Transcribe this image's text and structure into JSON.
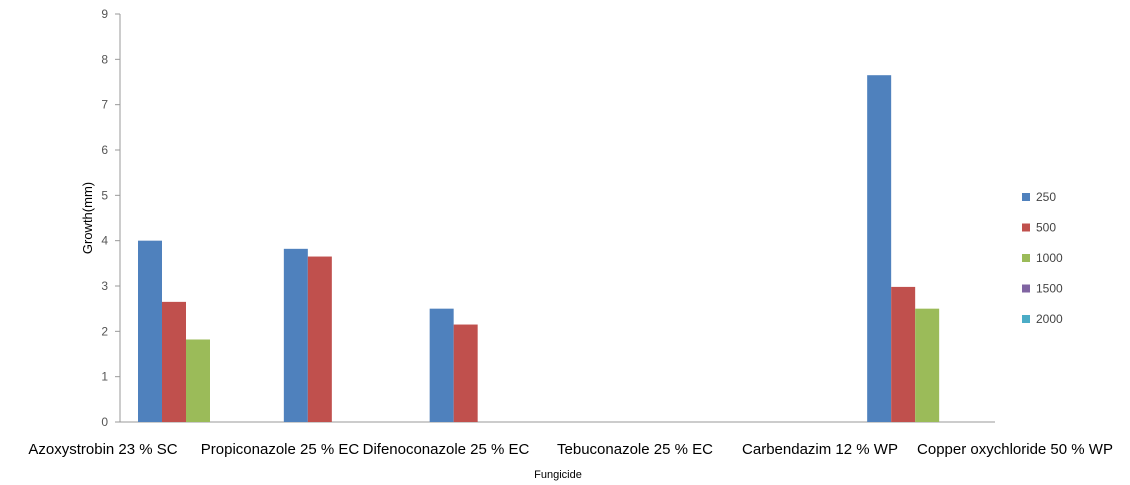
{
  "chart_data": {
    "type": "bar",
    "title": "",
    "xlabel": "Fungicide",
    "ylabel": "Growth(mm)",
    "ylim": [
      0,
      9
    ],
    "yticks": [
      0,
      1,
      2,
      3,
      4,
      5,
      6,
      7,
      8,
      9
    ],
    "grid": false,
    "legend_position": "right",
    "categories": [
      "Azoxystrobin 23 % SC",
      "Propiconazole 25 % EC",
      "Difenoconazole 25 % EC",
      "Tebuconazole 25 % EC",
      "Carbendazim 12 % WP",
      "Copper oxychloride 50 % WP"
    ],
    "series": [
      {
        "name": "250",
        "color": "#4F81BD",
        "values": [
          4.0,
          3.82,
          2.5,
          0,
          0,
          7.65
        ]
      },
      {
        "name": "500",
        "color": "#C0504D",
        "values": [
          2.65,
          3.65,
          2.15,
          0,
          0,
          2.98
        ]
      },
      {
        "name": "1000",
        "color": "#9BBB59",
        "values": [
          1.82,
          0,
          0,
          0,
          0,
          2.5
        ]
      },
      {
        "name": "1500",
        "color": "#8064A2",
        "values": [
          0,
          0,
          0,
          0,
          0,
          0
        ]
      },
      {
        "name": "2000",
        "color": "#4BACC6",
        "values": [
          0,
          0,
          0,
          0,
          0,
          0
        ]
      }
    ]
  }
}
